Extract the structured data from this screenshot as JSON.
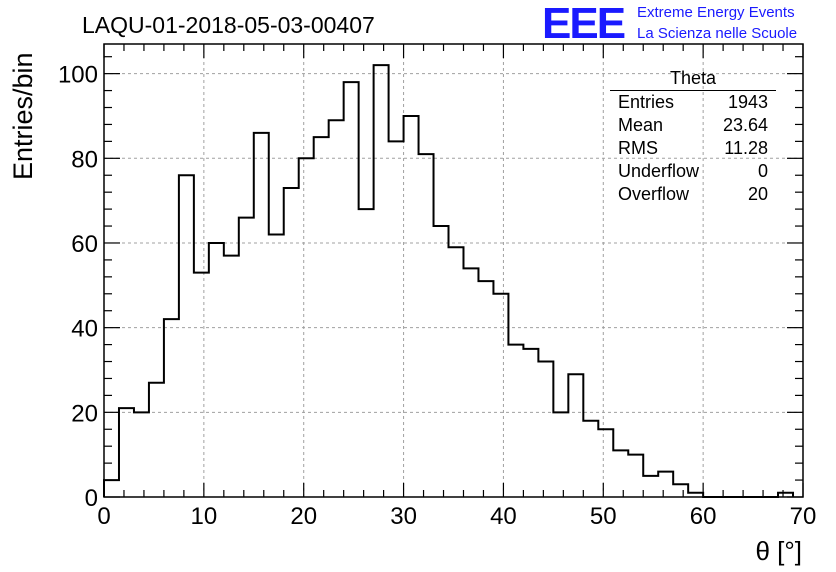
{
  "header": {
    "title": "LAQU-01-2018-05-03-00407",
    "logo_text": "EEE",
    "logo_line1": "Extreme Energy Events",
    "logo_line2": "La Scienza nelle Scuole"
  },
  "stats_box": {
    "title": "Theta",
    "rows": [
      {
        "label": "Entries",
        "value": "1943"
      },
      {
        "label": "Mean",
        "value": "23.64"
      },
      {
        "label": "RMS",
        "value": "11.28"
      },
      {
        "label": "Underflow",
        "value": "0"
      },
      {
        "label": "Overflow",
        "value": "20"
      }
    ]
  },
  "chart_data": {
    "type": "histogram",
    "title": "LAQU-01-2018-05-03-00407",
    "xlabel": "θ [°]",
    "ylabel": "Entries/bin",
    "xlim": [
      0,
      70
    ],
    "ylim": [
      0,
      107
    ],
    "grid": true,
    "bin_width": 1.5,
    "x_ticks": [
      0,
      10,
      20,
      30,
      40,
      50,
      60,
      70
    ],
    "y_ticks": [
      0,
      20,
      40,
      60,
      80,
      100
    ],
    "values": [
      4,
      21,
      20,
      27,
      42,
      76,
      53,
      60,
      57,
      66,
      86,
      62,
      73,
      80,
      85,
      89,
      98,
      68,
      102,
      84,
      90,
      81,
      64,
      59,
      54,
      51,
      48,
      36,
      35,
      32,
      20,
      29,
      18,
      16,
      11,
      10,
      5,
      6,
      3,
      1,
      0,
      0,
      0,
      0,
      0,
      1
    ],
    "colors": {
      "line": "#000000",
      "grid": "#a0a0a0"
    }
  }
}
